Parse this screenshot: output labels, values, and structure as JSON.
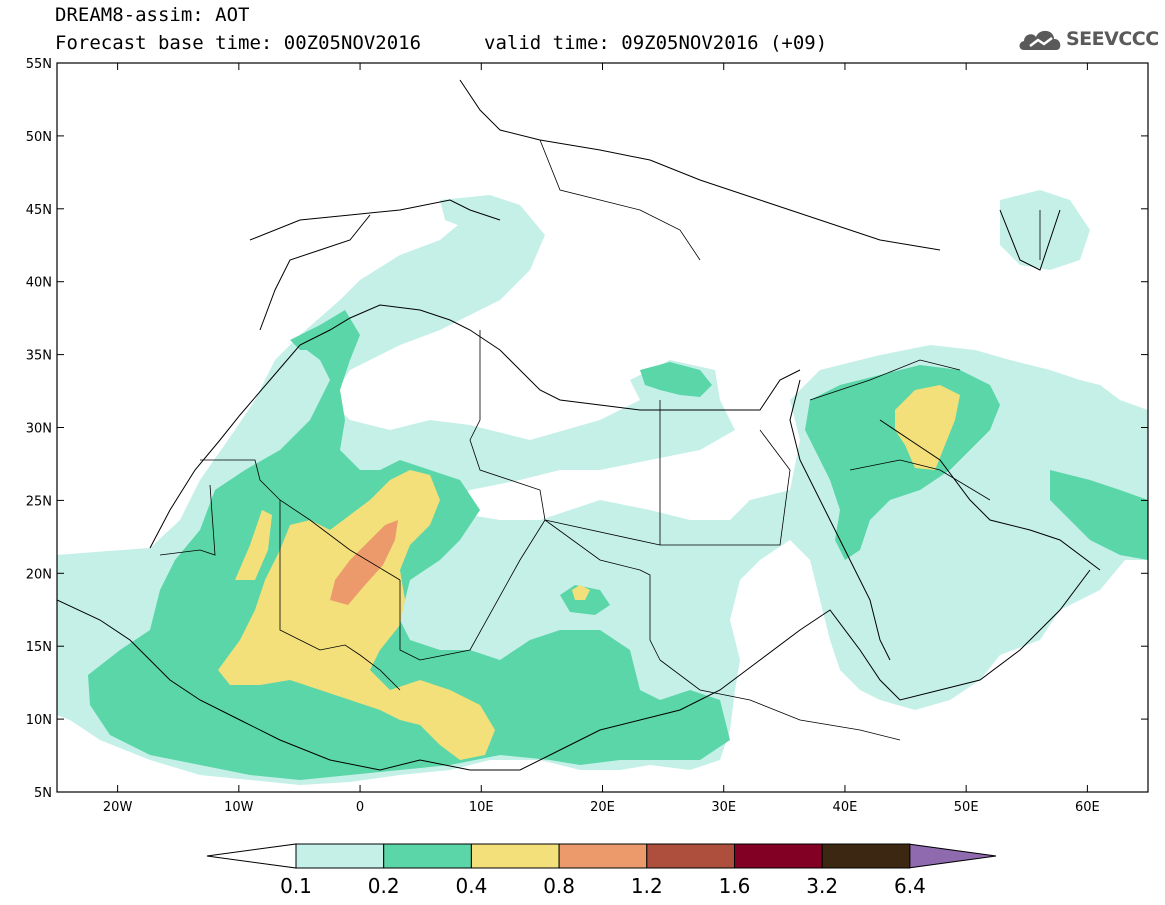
{
  "header": {
    "title_line1": "DREAM8-assim: AOT",
    "base_time": "Forecast base time: 00Z05NOV2016",
    "valid_time": "valid time: 09Z05NOV2016 (+09)"
  },
  "logo": {
    "text": "SEEVCCC",
    "icon": "cloud-logo-icon"
  },
  "map": {
    "projection": "cylindrical",
    "lon_range": [
      -25,
      65
    ],
    "lat_range": [
      5,
      55
    ],
    "lat_ticks": [
      "5N",
      "10N",
      "15N",
      "20N",
      "25N",
      "30N",
      "35N",
      "40N",
      "45N",
      "50N",
      "55N"
    ],
    "lon_ticks": [
      "20W",
      "10W",
      "0",
      "10E",
      "20E",
      "30E",
      "40E",
      "50E",
      "60E"
    ],
    "variable": "Aerosol optical thickness"
  },
  "colorbar": {
    "labels": [
      "0.1",
      "0.2",
      "0.4",
      "0.8",
      "1.2",
      "1.6",
      "3.2",
      "6.4"
    ],
    "colors": [
      "#c4f0e8",
      "#5ad6a8",
      "#f4e07a",
      "#ec9a6c",
      "#ad4f3c",
      "#820023",
      "#3c2712"
    ],
    "low_color": "#ffffff",
    "high_color": "#8f6aaf"
  },
  "colors": {
    "level1": "#c4f0e8",
    "level2": "#5ad6a8",
    "level3": "#f4e07a",
    "level4": "#ec9a6c"
  }
}
